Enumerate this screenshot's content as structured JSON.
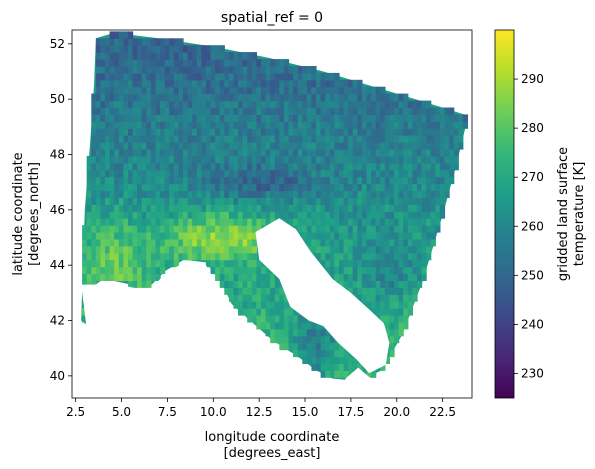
{
  "chart_data": {
    "type": "heatmap",
    "title": "spatial_ref = 0",
    "xlabel_line1": "longitude coordinate",
    "xlabel_line2": "[degrees_east]",
    "ylabel_line1": "latitude coordinate",
    "ylabel_line2": "[degrees_north]",
    "colorbar_label_line1": "gridded land surface",
    "colorbar_label_line2": "temperature [K]",
    "xlim": [
      2.3,
      24.1
    ],
    "ylim": [
      39.2,
      52.5
    ],
    "x_ticks": [
      2.5,
      5.0,
      7.5,
      10.0,
      12.5,
      15.0,
      17.5,
      20.0,
      22.5
    ],
    "x_tick_labels": [
      "2.5",
      "5.0",
      "7.5",
      "10.0",
      "12.5",
      "15.0",
      "17.5",
      "20.0",
      "22.5"
    ],
    "y_ticks": [
      40,
      42,
      44,
      46,
      48,
      50,
      52
    ],
    "y_tick_labels": [
      "40",
      "42",
      "44",
      "46",
      "48",
      "50",
      "52"
    ],
    "colorbar_range": [
      225,
      300
    ],
    "colorbar_ticks": [
      230,
      240,
      250,
      260,
      270,
      280,
      290
    ],
    "colorbar_tick_labels": [
      "230",
      "240",
      "250",
      "260",
      "270",
      "280",
      "290"
    ],
    "colormap": "viridis",
    "colormap_stops": [
      "#440154",
      "#482878",
      "#3e4989",
      "#31688e",
      "#26828e",
      "#1f9e89",
      "#35b779",
      "#6ece58",
      "#b5de2b",
      "#fde725"
    ],
    "background_color": "#ffffff"
  }
}
